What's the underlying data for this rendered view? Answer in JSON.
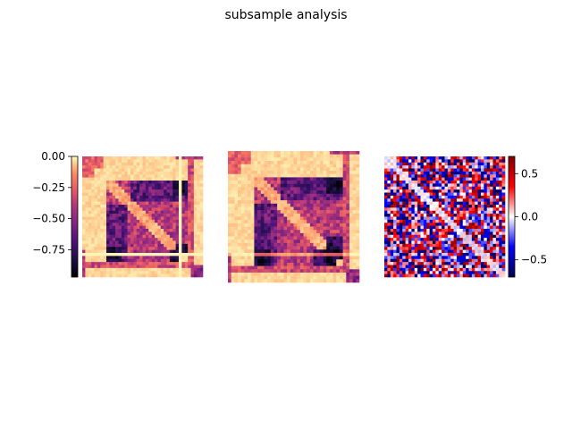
{
  "figure": {
    "title": "subsample analysis"
  },
  "chart_data": [
    {
      "type": "heatmap",
      "name": "panel-1",
      "colormap": "magma",
      "vmin": -0.97,
      "vmax": 0.0,
      "colorbar": {
        "location": "left",
        "ticks": [
          0.0,
          -0.25,
          -0.5,
          -0.75
        ],
        "tick_labels": [
          "0.00",
          "−0.25",
          "−0.50",
          "−0.75"
        ]
      },
      "pattern": "block structure: strong negative block with darker band along top-right and bottom-left corners",
      "grid": false
    },
    {
      "type": "heatmap",
      "name": "panel-2",
      "colormap": "magma",
      "vmin": -0.97,
      "vmax": 0.0,
      "colorbar": null,
      "pattern": "similar block structure to panel 1, slightly larger extent",
      "grid": false
    },
    {
      "type": "heatmap",
      "name": "panel-3",
      "colormap": "seismic",
      "vmin": -0.7,
      "vmax": 0.7,
      "colorbar": {
        "location": "right",
        "ticks": [
          0.5,
          0.0,
          -0.5
        ],
        "tick_labels": [
          "0.5",
          "0.0",
          "−0.5"
        ]
      },
      "pattern": "noisy difference map, symmetric, lighter diagonal",
      "grid": false
    }
  ]
}
